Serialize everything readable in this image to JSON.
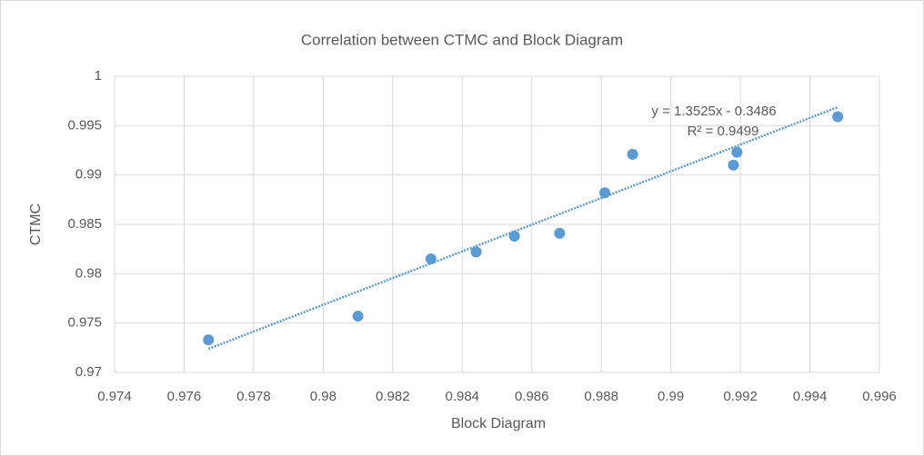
{
  "chart_data": {
    "type": "scatter",
    "title": "Correlation between CTMC and Block Diagram",
    "x_label": "Block Diagram",
    "y_label": "CTMC",
    "color": "#5b9bd5",
    "x": [
      0.9767,
      0.981,
      0.9831,
      0.9844,
      0.9855,
      0.9868,
      0.9881,
      0.9889,
      0.9918,
      0.9919,
      0.9948
    ],
    "values": [
      0.9733,
      0.9757,
      0.9815,
      0.9822,
      0.9838,
      0.9841,
      0.9882,
      0.9921,
      0.991,
      0.9923,
      0.9959
    ],
    "xlim": [
      0.974,
      0.996
    ],
    "xticks": [
      0.974,
      0.976,
      0.978,
      0.98,
      0.982,
      0.984,
      0.986,
      0.988,
      0.99,
      0.992,
      0.994,
      0.996
    ],
    "ylim": [
      0.97,
      1
    ],
    "yticks": [
      0.97,
      0.975,
      0.98,
      0.985,
      0.99,
      0.995,
      1
    ],
    "grid": true,
    "trendline": {
      "slope": 1.3525,
      "intercept": -0.3486,
      "label": "y = 1.3525x - 0.3486",
      "r_squared": 0.9499,
      "r_squared_label": "R² = 0.9499"
    }
  }
}
